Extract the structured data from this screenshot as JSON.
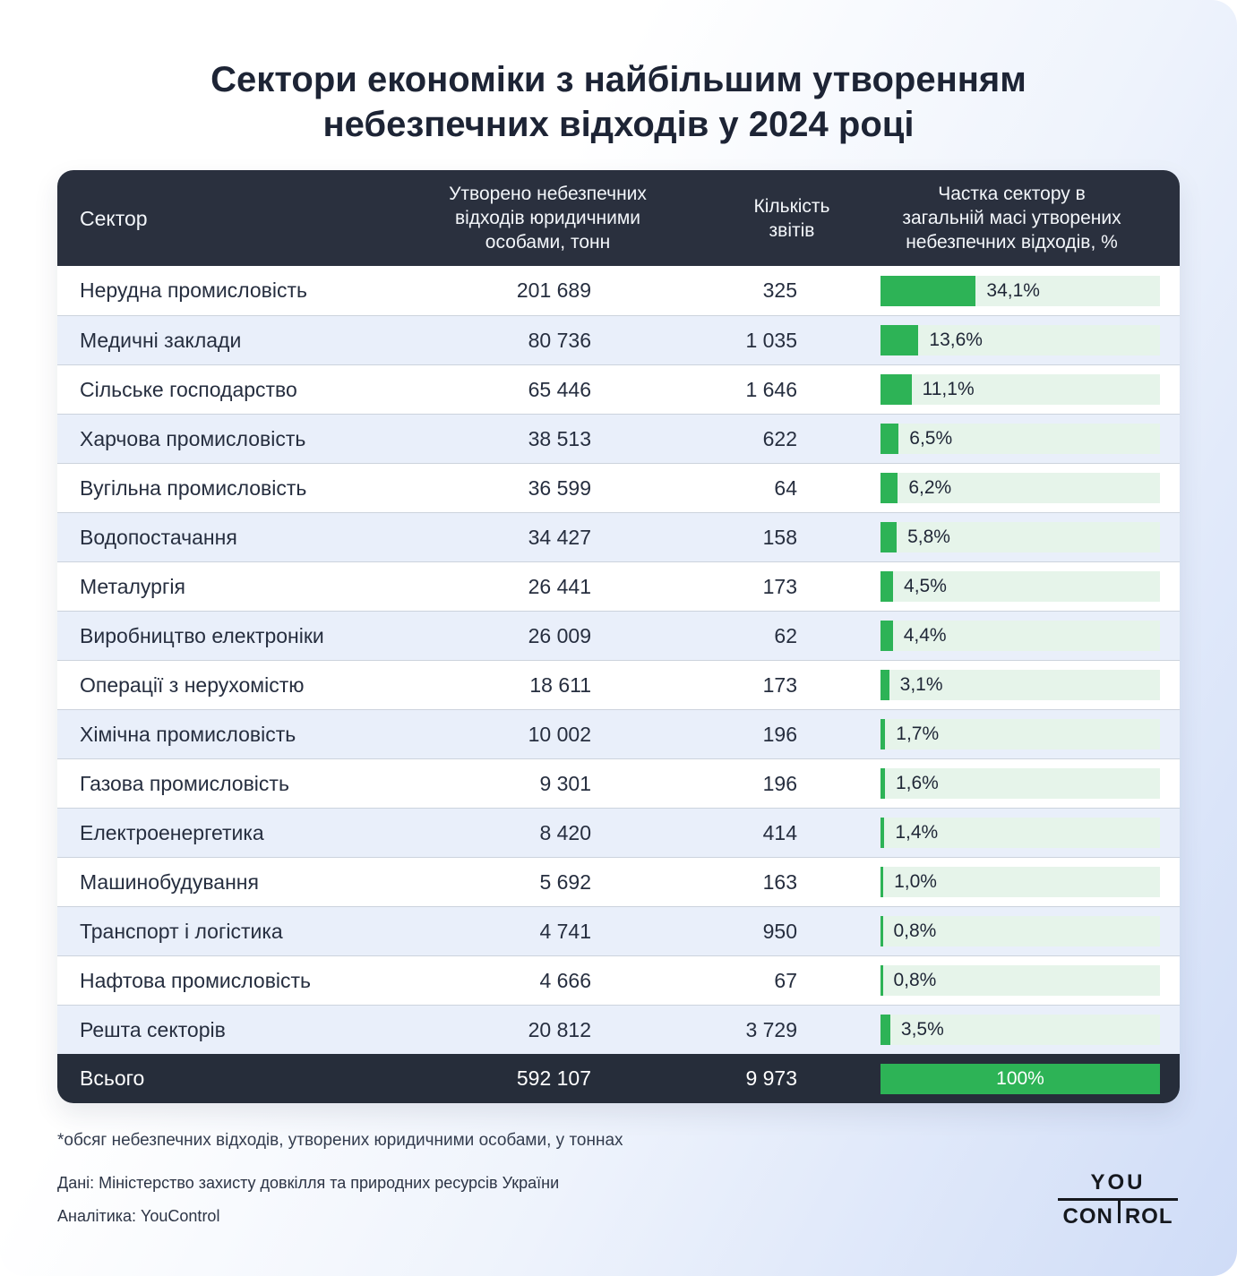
{
  "title": "Сектори економіки з найбільшим утворенням небезпечних відходів у 2024 році",
  "table": {
    "columns": {
      "sector": "Сектор",
      "waste": "Утворено небезпечних відходів юридичними особами, тонн",
      "reports": "Кількість звітів",
      "share": "Частка сектору в загальній масі утворених небезпечних відходів, %"
    },
    "rows": [
      {
        "sector": "Нерудна промисловість",
        "waste": "201 689",
        "reports": "325",
        "share_label": "34,1%",
        "share_pct": 34.1
      },
      {
        "sector": "Медичні заклади",
        "waste": "80 736",
        "reports": "1 035",
        "share_label": "13,6%",
        "share_pct": 13.6
      },
      {
        "sector": "Сільське господарство",
        "waste": "65 446",
        "reports": "1 646",
        "share_label": "11,1%",
        "share_pct": 11.1
      },
      {
        "sector": "Харчова промисловість",
        "waste": "38 513",
        "reports": "622",
        "share_label": "6,5%",
        "share_pct": 6.5
      },
      {
        "sector": "Вугільна промисловість",
        "waste": "36 599",
        "reports": "64",
        "share_label": "6,2%",
        "share_pct": 6.2
      },
      {
        "sector": "Водопостачання",
        "waste": "34 427",
        "reports": "158",
        "share_label": "5,8%",
        "share_pct": 5.8
      },
      {
        "sector": "Металургія",
        "waste": "26 441",
        "reports": "173",
        "share_label": "4,5%",
        "share_pct": 4.5
      },
      {
        "sector": "Виробництво електроніки",
        "waste": "26 009",
        "reports": "62",
        "share_label": "4,4%",
        "share_pct": 4.4
      },
      {
        "sector": "Операції з нерухомістю",
        "waste": "18 611",
        "reports": "173",
        "share_label": "3,1%",
        "share_pct": 3.1
      },
      {
        "sector": "Хімічна промисловість",
        "waste": "10 002",
        "reports": "196",
        "share_label": "1,7%",
        "share_pct": 1.7
      },
      {
        "sector": "Газова промисловість",
        "waste": "9 301",
        "reports": "196",
        "share_label": "1,6%",
        "share_pct": 1.6
      },
      {
        "sector": "Електроенергетика",
        "waste": "8 420",
        "reports": "414",
        "share_label": "1,4%",
        "share_pct": 1.4
      },
      {
        "sector": "Машинобудування",
        "waste": "5 692",
        "reports": "163",
        "share_label": "1,0%",
        "share_pct": 1.0
      },
      {
        "sector": "Транспорт і логістика",
        "waste": "4 741",
        "reports": "950",
        "share_label": "0,8%",
        "share_pct": 0.8
      },
      {
        "sector": "Нафтова промисловість",
        "waste": "4 666",
        "reports": "67",
        "share_label": "0,8%",
        "share_pct": 0.8
      },
      {
        "sector": "Решта секторів",
        "waste": "20 812",
        "reports": "3 729",
        "share_label": "3,5%",
        "share_pct": 3.5
      }
    ],
    "total": {
      "sector": "Всього",
      "waste": "592 107",
      "reports": "9 973",
      "share_label": "100%",
      "share_pct": 100
    }
  },
  "footnote": "*обсяг небезпечних відходів, утворених юридичними особами, у тоннах",
  "source_line": "Дані: Міністерство захисту довкілля та природних ресурсів України",
  "analytics_line": "Аналітика: YouControl",
  "logo": {
    "line1": "YOU",
    "line2": "CONTROL"
  },
  "colors": {
    "accent_green": "#2db356",
    "bar_track": "#e6f4ea",
    "header_bg": "#2a303e",
    "total_bg": "#262d3a",
    "row_alt": "#e9effa",
    "divider": "#ccd3dd",
    "title_text": "#1d2435"
  },
  "chart_data": {
    "type": "table",
    "title": "Сектори економіки з найбільшим утворенням небезпечних відходів у 2024 році",
    "columns": [
      "Сектор",
      "Утворено небезпечних відходів юридичними особами, тонн",
      "Кількість звітів",
      "Частка сектору в загальній масі утворених небезпечних відходів, %"
    ],
    "bar_column": "Частка сектору в загальній масі утворених небезпечних відходів, %",
    "bar_range": [
      0,
      100
    ],
    "categories": [
      "Нерудна промисловість",
      "Медичні заклади",
      "Сільське господарство",
      "Харчова промисловість",
      "Вугільна промисловість",
      "Водопостачання",
      "Металургія",
      "Виробництво електроніки",
      "Операції з нерухомістю",
      "Хімічна промисловість",
      "Газова промисловість",
      "Електроенергетика",
      "Машинобудування",
      "Транспорт і логістика",
      "Нафтова промисловість",
      "Решта секторів"
    ],
    "series": [
      {
        "name": "Утворено небезпечних відходів юридичними особами, тонн",
        "values": [
          201689,
          80736,
          65446,
          38513,
          36599,
          34427,
          26441,
          26009,
          18611,
          10002,
          9301,
          8420,
          5692,
          4741,
          4666,
          20812
        ]
      },
      {
        "name": "Кількість звітів",
        "values": [
          325,
          1035,
          1646,
          622,
          64,
          158,
          173,
          62,
          173,
          196,
          196,
          414,
          163,
          950,
          67,
          3729
        ]
      },
      {
        "name": "Частка сектору, %",
        "values": [
          34.1,
          13.6,
          11.1,
          6.5,
          6.2,
          5.8,
          4.5,
          4.4,
          3.1,
          1.7,
          1.6,
          1.4,
          1.0,
          0.8,
          0.8,
          3.5
        ]
      }
    ],
    "total": {
      "name": "Всього",
      "waste_tons": 592107,
      "reports": 9973,
      "share_pct": 100
    }
  }
}
